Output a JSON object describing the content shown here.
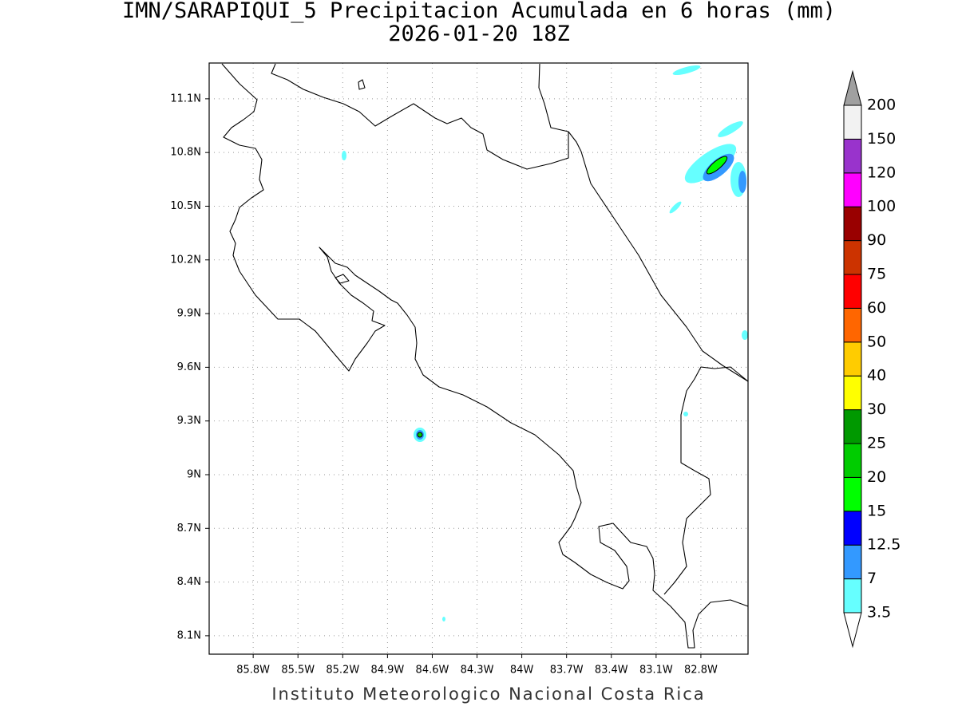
{
  "title": "IMN/SARAPIQUI_5 Precipitacion Acumulada en 6 horas (mm)",
  "subtitle": "2026-01-20 18Z",
  "footer": "Instituto Meteorologico Nacional Costa Rica",
  "map": {
    "xlim": [
      -86.095,
      -82.484
    ],
    "ylim": [
      7.997,
      11.3
    ],
    "grid": true,
    "xticks": [
      {
        "value": -85.8,
        "label": "85.8W"
      },
      {
        "value": -85.5,
        "label": "85.5W"
      },
      {
        "value": -85.2,
        "label": "85.2W"
      },
      {
        "value": -84.9,
        "label": "84.9W"
      },
      {
        "value": -84.6,
        "label": "84.6W"
      },
      {
        "value": -84.3,
        "label": "84.3W"
      },
      {
        "value": -84,
        "label": "84W"
      },
      {
        "value": -83.7,
        "label": "83.7W"
      },
      {
        "value": -83.4,
        "label": "83.4W"
      },
      {
        "value": -83.1,
        "label": "83.1W"
      },
      {
        "value": -82.8,
        "label": "82.8W"
      }
    ],
    "yticks": [
      {
        "value": 8.1,
        "label": "8.1N"
      },
      {
        "value": 8.4,
        "label": "8.4N"
      },
      {
        "value": 8.7,
        "label": "8.7N"
      },
      {
        "value": 9,
        "label": "9N"
      },
      {
        "value": 9.3,
        "label": "9.3N"
      },
      {
        "value": 9.6,
        "label": "9.6N"
      },
      {
        "value": 9.9,
        "label": "9.9N"
      },
      {
        "value": 10.2,
        "label": "10.2N"
      },
      {
        "value": 10.5,
        "label": "10.5N"
      },
      {
        "value": 10.8,
        "label": "10.8N"
      },
      {
        "value": 11.1,
        "label": "11.1N"
      }
    ]
  },
  "colorbar": {
    "levels": [
      3.5,
      7,
      12.5,
      15,
      20,
      25,
      30,
      40,
      50,
      60,
      75,
      90,
      100,
      120,
      150,
      200
    ],
    "colors": [
      "#66ffff",
      "#3399ff",
      "#0000ff",
      "#00ff00",
      "#00cc00",
      "#009900",
      "#ffff00",
      "#ffcc00",
      "#ff6600",
      "#ff0000",
      "#cc3300",
      "#990000",
      "#ff00ff",
      "#9933cc",
      "#f2f2f2"
    ],
    "under_color": "#ffffff",
    "over_color": "#a0a0a0"
  }
}
